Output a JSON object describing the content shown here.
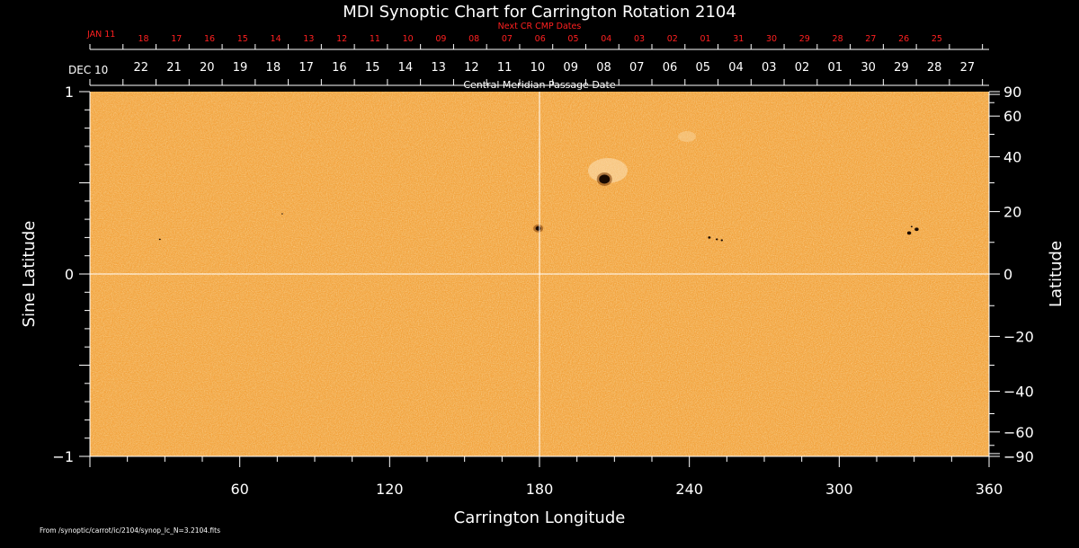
{
  "chart_data": {
    "type": "heatmap",
    "title": "MDI Synoptic Chart for Carrington Rotation 2104",
    "next_cr_label": "Next CR CMP Dates",
    "cmp_label": "Central Meridian Passage Date",
    "xlabel": "Carrington Longitude",
    "ylabel_left": "Sine Latitude",
    "ylabel_right": "Latitude",
    "footer": "From /synoptic/carrot/ic/2104/synop_Ic_N=3.2104.fits",
    "xlim": [
      0,
      360
    ],
    "ylim": [
      -1,
      1
    ],
    "x_ticks": [
      60,
      120,
      180,
      240,
      300,
      360
    ],
    "y_ticks_left": [
      {
        "value": 1,
        "label": "1"
      },
      {
        "value": 0,
        "label": "0"
      },
      {
        "value": -1,
        "label": "−1"
      }
    ],
    "y_ticks_right": [
      {
        "value": 90,
        "label": "90"
      },
      {
        "value": 60,
        "label": "60"
      },
      {
        "value": 40,
        "label": "40"
      },
      {
        "value": 20,
        "label": "20"
      },
      {
        "value": 0,
        "label": "0"
      },
      {
        "value": -20,
        "label": "−20"
      },
      {
        "value": -40,
        "label": "−40"
      },
      {
        "value": -60,
        "label": "−60"
      },
      {
        "value": -90,
        "label": "−90"
      }
    ],
    "dec_start_label": "DEC 10",
    "dec_dates": [
      "22",
      "21",
      "20",
      "19",
      "18",
      "17",
      "16",
      "15",
      "14",
      "13",
      "12",
      "11",
      "10",
      "09",
      "08",
      "07",
      "06",
      "05",
      "04",
      "03",
      "02",
      "01",
      "30",
      "29",
      "28",
      "27"
    ],
    "jan_start_label": "JAN 11",
    "jan_dates": [
      "18",
      "17",
      "16",
      "15",
      "14",
      "13",
      "12",
      "11",
      "10",
      "09",
      "08",
      "07",
      "06",
      "05",
      "04",
      "03",
      "02",
      "01",
      "31",
      "30",
      "29",
      "28",
      "27",
      "26",
      "25"
    ],
    "crosshair": {
      "longitude": 180,
      "sine_latitude": 0
    },
    "sunspots": [
      {
        "longitude": 206,
        "sine_latitude": 0.52,
        "size": 6
      },
      {
        "longitude": 179.5,
        "sine_latitude": 0.25,
        "size": 3
      },
      {
        "longitude": 248,
        "sine_latitude": 0.2,
        "size": 1.5
      },
      {
        "longitude": 251,
        "sine_latitude": 0.19,
        "size": 1.2
      },
      {
        "longitude": 253,
        "sine_latitude": 0.185,
        "size": 1.2
      },
      {
        "longitude": 328,
        "sine_latitude": 0.225,
        "size": 2.2
      },
      {
        "longitude": 331,
        "sine_latitude": 0.245,
        "size": 2.2
      },
      {
        "longitude": 329,
        "sine_latitude": 0.26,
        "size": 1
      },
      {
        "longitude": 28,
        "sine_latitude": 0.19,
        "size": 1
      },
      {
        "longitude": 77,
        "sine_latitude": 0.33,
        "size": 0.8
      }
    ],
    "colors": {
      "background": "#000000",
      "map": "#f2a23c",
      "map_light": "#f8c370",
      "map_dark": "#d97a1e",
      "sunspot": "#1a0a00",
      "next_cr_text": "#ff2020",
      "axis": "#ffffff"
    }
  }
}
